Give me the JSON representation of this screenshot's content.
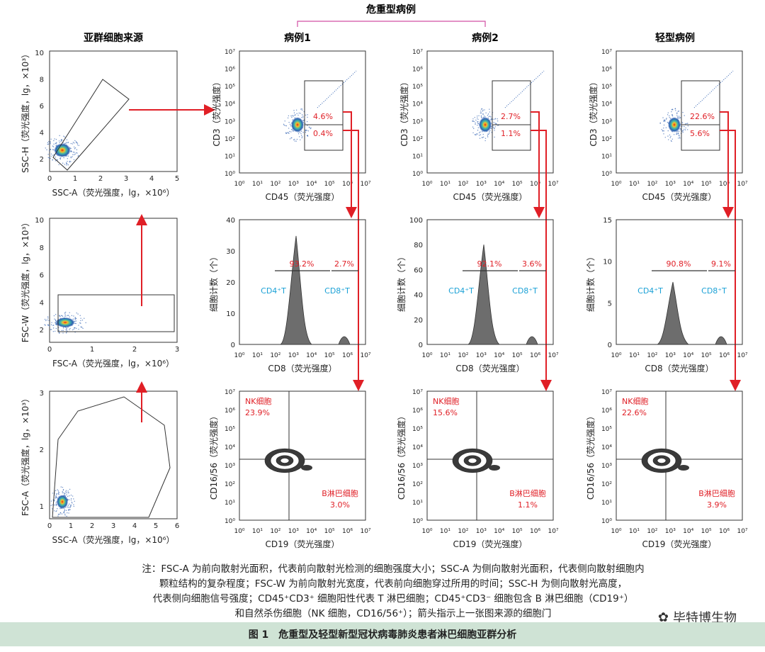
{
  "header": {
    "severe_group": "危重型病例",
    "col_source": "亚群细胞来源",
    "case1": "病例1",
    "case2": "病例2",
    "mild": "轻型病例"
  },
  "source_panels": {
    "p1": {
      "xlabel": "SSC-A（荧光强度，lg，×10⁶）",
      "ylabel": "SSC-H（荧光强度，lg，×10³）",
      "xticks": [
        "0",
        "1",
        "2",
        "3",
        "4",
        "5"
      ],
      "yticks": [
        "10",
        "8",
        "6",
        "4",
        "2"
      ]
    },
    "p2": {
      "xlabel": "FSC-A（荧光强度，lg，×10⁶）",
      "ylabel": "FSC-W（荧光强度，lg，×10³）",
      "xticks": [
        "0",
        "1",
        "2",
        "3"
      ],
      "yticks": [
        "10",
        "8",
        "6",
        "4",
        "2"
      ]
    },
    "p3": {
      "xlabel": "SSC-A（荧光强度，lg，×10⁶）",
      "ylabel": "FSC-A（荧光强度，lg，×10³）",
      "xticks": [
        "0",
        "1",
        "2",
        "3",
        "4",
        "5",
        "6"
      ],
      "yticks": [
        "3",
        "2",
        "1"
      ]
    }
  },
  "log_ticks": [
    "10⁰",
    "10¹",
    "10²",
    "10³",
    "10⁴",
    "10⁵",
    "10⁶",
    "10⁷"
  ],
  "row1": {
    "xlabel": "CD45（荧光强度）",
    "ylabel": "CD3（荧光强度）"
  },
  "row2": {
    "xlabel": "CD8（荧光强度）",
    "ylabel": "细胞计数（个）",
    "cd4": "CD4⁺T",
    "cd8": "CD8⁺T"
  },
  "row3": {
    "xlabel": "CD19（荧光强度）",
    "ylabel": "CD16/56（荧光强度）",
    "nk": "NK细胞",
    "b": "B淋巴细胞"
  },
  "cases": [
    {
      "cd3_high": "4.6%",
      "cd3_low": "0.4%",
      "cd4_pct": "93.2%",
      "cd8_pct": "2.7%",
      "count_yticks": [
        "40",
        "30",
        "20",
        "10",
        "0"
      ],
      "nk_pct": "23.9%",
      "b_pct": "3.0%"
    },
    {
      "cd3_high": "2.7%",
      "cd3_low": "1.1%",
      "cd4_pct": "92.1%",
      "cd8_pct": "3.6%",
      "count_yticks": [
        "100",
        "80",
        "60",
        "40",
        "20",
        "0"
      ],
      "nk_pct": "15.6%",
      "b_pct": "1.1%"
    },
    {
      "cd3_high": "22.6%",
      "cd3_low": "5.6%",
      "cd4_pct": "90.8%",
      "cd8_pct": "9.1%",
      "count_yticks": [
        "15",
        "10",
        "5",
        "0"
      ],
      "nk_pct": "22.6%",
      "b_pct": "3.9%"
    }
  ],
  "note": {
    "line1": "注：FSC-A 为前向散射光面积，代表前向散射光检测的细胞强度大小；SSC-A 为侧向散射光面积，代表侧向散射细胞内",
    "line2": "颗粒结构的复杂程度；FSC-W 为前向散射光宽度，代表前向细胞穿过所用的时间；SSC-H 为侧向散射光高度，",
    "line3": "代表侧向细胞信号强度；CD45⁺CD3⁺ 细胞阳性代表 T 淋巴细胞；CD45⁺CD3⁻ 细胞包含 B 淋巴细胞（CD19⁺）",
    "line4": "和自然杀伤细胞（NK 细胞，CD16/56⁺）；箭头指示上一张图来源的细胞门"
  },
  "caption": "图 1　危重型及轻型新型冠状病毒肺炎患者淋巴细胞亚群分析",
  "watermark": "毕特博生物",
  "colors": {
    "arrow": "#e01f26",
    "gate_text": "#e01f26",
    "cd_label": "#1ba1d6",
    "bracket": "#d24fa3",
    "hist": "#6d6d6d"
  }
}
